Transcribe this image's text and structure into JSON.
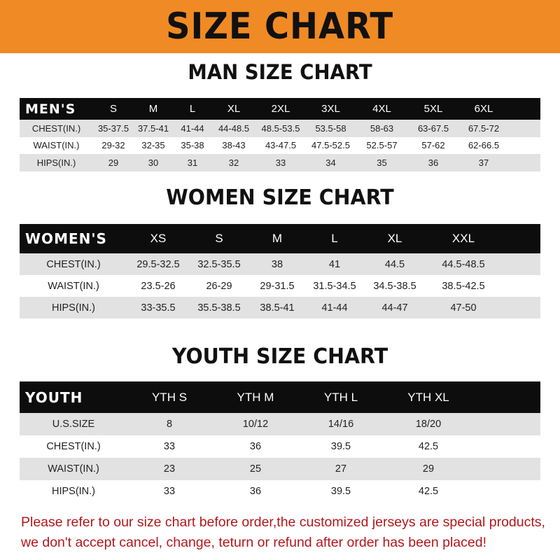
{
  "banner": {
    "title": "SIZE CHART",
    "color": "#f08a24"
  },
  "men": {
    "title": "MAN SIZE CHART",
    "header": [
      "MEN'S",
      "S",
      "M",
      "L",
      "XL",
      "2XL",
      "3XL",
      "4XL",
      "5XL",
      "6XL"
    ],
    "rows": [
      [
        "CHEST(IN.)",
        "35-37.5",
        "37.5-41",
        "41-44",
        "44-48.5",
        "48.5-53.5",
        "53.5-58",
        "58-63",
        "63-67.5",
        "67.5-72"
      ],
      [
        "WAIST(IN.)",
        "29-32",
        "32-35",
        "35-38",
        "38-43",
        "43-47.5",
        "47.5-52.5",
        "52.5-57",
        "57-62",
        "62-66.5"
      ],
      [
        "HIPS(IN.)",
        "29",
        "30",
        "31",
        "32",
        "33",
        "34",
        "35",
        "36",
        "37"
      ]
    ]
  },
  "women": {
    "title": "WOMEN SIZE CHART",
    "header": [
      "WOMEN'S",
      "XS",
      "S",
      "M",
      "L",
      "XL",
      "XXL"
    ],
    "rows": [
      [
        "CHEST(IN.)",
        "29.5-32.5",
        "32.5-35.5",
        "38",
        "41",
        "44.5",
        "44.5-48.5"
      ],
      [
        "WAIST(IN.)",
        "23.5-26",
        "26-29",
        "29-31.5",
        "31.5-34.5",
        "34.5-38.5",
        "38.5-42.5"
      ],
      [
        "HIPS(IN.)",
        "33-35.5",
        "35.5-38.5",
        "38.5-41",
        "41-44",
        "44-47",
        "47-50"
      ]
    ]
  },
  "youth": {
    "title": "YOUTH SIZE CHART",
    "header": [
      "YOUTH",
      "YTH S",
      "YTH M",
      "YTH L",
      "YTH XL"
    ],
    "rows": [
      [
        "U.S.SIZE",
        "8",
        "10/12",
        "14/16",
        "18/20"
      ],
      [
        "CHEST(IN.)",
        "33",
        "36",
        "39.5",
        "42.5"
      ],
      [
        "WAIST(IN.)",
        "23",
        "25",
        "27",
        "29"
      ],
      [
        "HIPS(IN.)",
        "33",
        "36",
        "39.5",
        "42.5"
      ]
    ]
  },
  "footer": {
    "line1": "Please refer to our size chart before order,the customized jerseys are special products,",
    "line2": "we don't accept cancel, change, teturn or refund after order has been placed!",
    "color": "#b3171c"
  }
}
